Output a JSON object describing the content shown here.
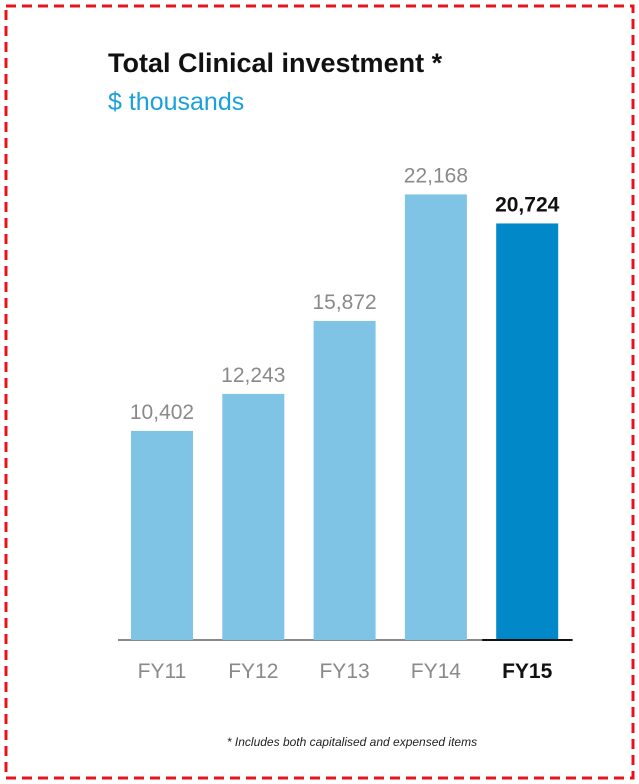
{
  "chart_data": {
    "type": "bar",
    "title": "Total Clinical investment *",
    "subtitle": "$ thousands",
    "footnote": "* Includes both capitalised and expensed items",
    "categories": [
      "FY11",
      "FY12",
      "FY13",
      "FY14",
      "FY15"
    ],
    "values": [
      10402,
      12243,
      15872,
      22168,
      20724
    ],
    "value_labels": [
      "10,402",
      "12,243",
      "15,872",
      "22,168",
      "20,724"
    ],
    "color": "#7fc4e4",
    "highlight": "FY15",
    "highlight_color": "#0088c9"
  }
}
